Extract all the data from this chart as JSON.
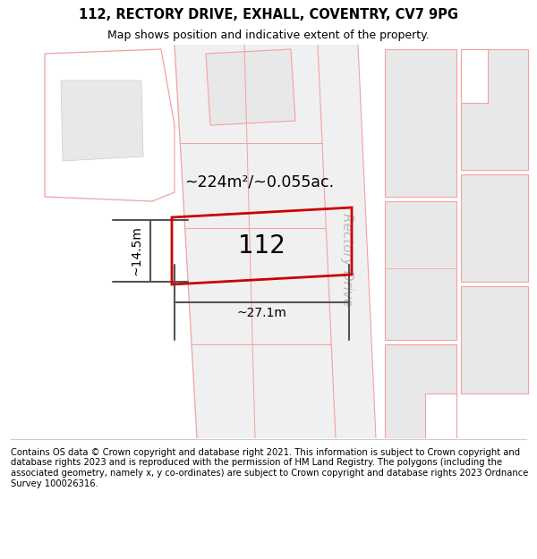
{
  "title": "112, RECTORY DRIVE, EXHALL, COVENTRY, CV7 9PG",
  "subtitle": "Map shows position and indicative extent of the property.",
  "footer": "Contains OS data © Crown copyright and database right 2021. This information is subject to Crown copyright and database rights 2023 and is reproduced with the permission of HM Land Registry. The polygons (including the associated geometry, namely x, y co-ordinates) are subject to Crown copyright and database rights 2023 Ordnance Survey 100026316.",
  "area_text": "~224m²/~0.055ac.",
  "label_112": "112",
  "dim_width": "~27.1m",
  "dim_height": "~14.5m",
  "road_label": "Rectory Drive",
  "bg_color": "#ffffff",
  "parcel_fill": "#e8e8e8",
  "parcel_edge": "#f5a0a0",
  "road_fill": "#e0e0e0",
  "red_color": "#cc0000",
  "gray_dim": "#555555",
  "road_text": "#bbbbbb"
}
